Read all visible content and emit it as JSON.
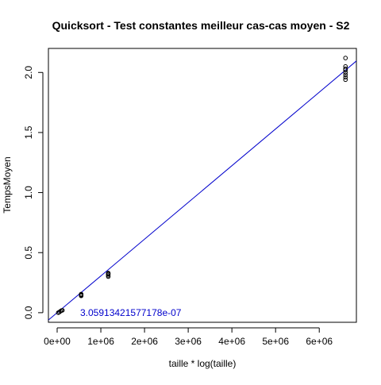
{
  "chart_data": {
    "type": "scatter",
    "title": "Quicksort - Test constantes meilleur cas-cas moyen - S2",
    "xlabel": "taille * log(taille)",
    "ylabel": "TempsMoyen",
    "xlim": [
      -200000,
      6850000
    ],
    "ylim": [
      -0.08,
      2.2
    ],
    "x_ticks": [
      0,
      1000000,
      2000000,
      3000000,
      4000000,
      5000000,
      6000000
    ],
    "x_tick_labels": [
      "0e+00",
      "1e+06",
      "2e+06",
      "3e+06",
      "4e+06",
      "5e+06",
      "6e+06"
    ],
    "y_ticks": [
      0.0,
      0.5,
      1.0,
      1.5,
      2.0
    ],
    "y_tick_labels": [
      "0.0",
      "0.5",
      "1.0",
      "1.5",
      "2.0"
    ],
    "grid": false,
    "points": {
      "x": [
        25000,
        50000,
        75000,
        100000,
        120000,
        550000,
        550000,
        550000,
        550000,
        1170000,
        1170000,
        1170000,
        1170000,
        1170000,
        6600000,
        6600000,
        6600000,
        6600000,
        6600000,
        6600000,
        6600000,
        6600000
      ],
      "y": [
        0.0,
        0.005,
        0.012,
        0.018,
        0.02,
        0.14,
        0.145,
        0.15,
        0.155,
        0.3,
        0.31,
        0.32,
        0.325,
        0.33,
        1.94,
        1.96,
        1.98,
        2.0,
        2.02,
        2.03,
        2.05,
        2.12
      ],
      "marker": "open-circle",
      "color": "#000000"
    },
    "regression_line": {
      "slope": 3.05913421577178e-07,
      "intercept": 0,
      "color": "#0000cc"
    },
    "annotation": {
      "text": "3.05913421577178e-07",
      "x": 600000,
      "y": 0.0,
      "color": "#0000cc"
    }
  }
}
